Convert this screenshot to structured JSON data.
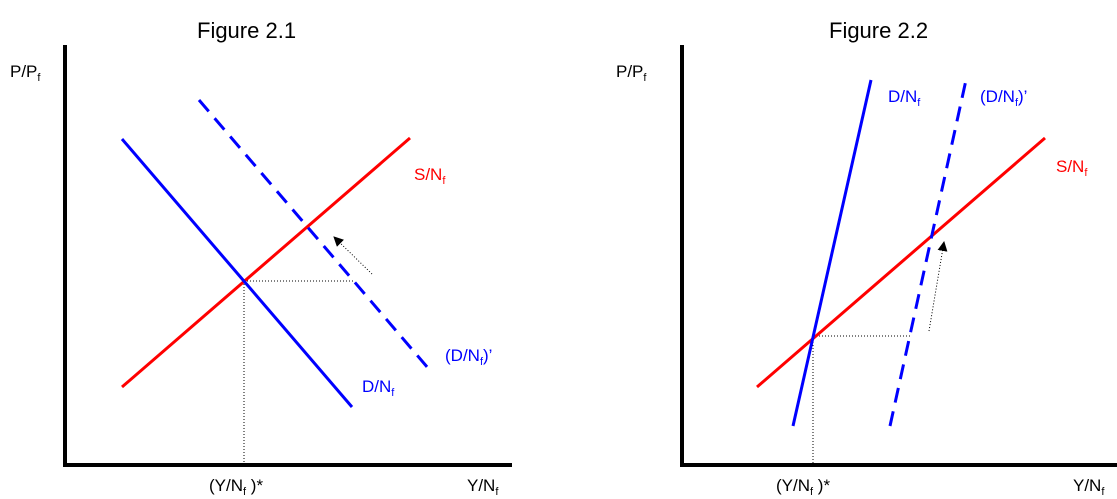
{
  "colors": {
    "supply": "#ff0000",
    "demand": "#0000ff",
    "axis": "#000000",
    "guide": "#000000"
  },
  "figures": [
    {
      "title": "Figure 2.1",
      "y_axis": {
        "main": "P/P",
        "sub": "f"
      },
      "x_axis": {
        "main": "Y/N",
        "sub": "f"
      },
      "equilibrium": {
        "open": "(Y/N",
        "sub": "f",
        "close": " )*"
      },
      "supply": {
        "main": "S/N",
        "sub": "f"
      },
      "demand": {
        "main": "D/N",
        "sub": "f"
      },
      "demand_shifted": {
        "open": "(D/N",
        "sub": "f",
        "close": ")’"
      }
    },
    {
      "title": "Figure 2.2",
      "y_axis": {
        "main": "P/P",
        "sub": "f"
      },
      "x_axis": {
        "main": "Y/N",
        "sub": "f"
      },
      "equilibrium": {
        "open": "(Y/N",
        "sub": "f",
        "close": " )*"
      },
      "supply": {
        "main": "S/N",
        "sub": "f"
      },
      "demand": {
        "main": "D/N",
        "sub": "f"
      },
      "demand_shifted": {
        "open": "(D/N",
        "sub": "f",
        "close": ")’"
      }
    }
  ]
}
